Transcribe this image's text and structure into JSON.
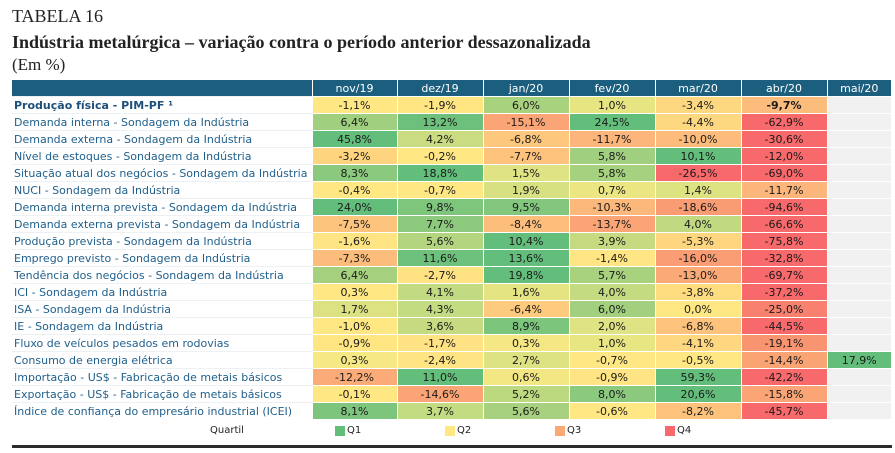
{
  "header": {
    "table_number": "TABELA 16",
    "title": "Indústria metalúrgica – variação contra o período anterior dessazonalizada",
    "unit": "(Em %)"
  },
  "columns": [
    "nov/19",
    "dez/19",
    "jan/20",
    "fev/20",
    "mar/20",
    "abr/20",
    "mai/20"
  ],
  "colors": {
    "header_bg": "#1b5e7e",
    "label_text": "#1f5f8b",
    "empty_cell": "#f1f1f1",
    "Q1": "#63be7b",
    "Q2": "#ffe884",
    "Q3": "#fba877",
    "Q4": "#f8696b"
  },
  "rows": [
    {
      "label": "Produção física - PIM-PF ¹",
      "bold": true,
      "values": [
        "-1,1%",
        "-1,9%",
        "6,0%",
        "1,0%",
        "-3,4%",
        "-9,7%",
        ""
      ],
      "fills": [
        "#ffe884",
        "#ffe683",
        "#a9d27f",
        "#e7e582",
        "#fed880",
        "#fcbc7b",
        ""
      ]
    },
    {
      "label": "Demanda interna - Sondagem da Indústria",
      "values": [
        "6,4%",
        "13,2%",
        "-15,1%",
        "24,5%",
        "-4,4%",
        "-62,9%",
        ""
      ],
      "fills": [
        "#9fcf7f",
        "#6cc07c",
        "#fba576",
        "#63be7b",
        "#fed880",
        "#f8696b",
        ""
      ]
    },
    {
      "label": "Demanda externa - Sondagem da Indústria",
      "values": [
        "45,8%",
        "4,2%",
        "-6,8%",
        "-11,7%",
        "-10,0%",
        "-30,6%",
        ""
      ],
      "fills": [
        "#63be7b",
        "#c9dc81",
        "#fdc77d",
        "#fcb57a",
        "#fdbc7b",
        "#f8696b",
        ""
      ]
    },
    {
      "label": "Nível de estoques - Sondagem da Indústria",
      "values": [
        "-3,2%",
        "-0,2%",
        "-7,7%",
        "5,8%",
        "10,1%",
        "-12,0%",
        ""
      ],
      "fills": [
        "#fed47f",
        "#ffe784",
        "#fdc27c",
        "#9fcf7f",
        "#63be7b",
        "#f8696b",
        ""
      ]
    },
    {
      "label": "Situação atual dos negócios - Sondagem da Indústria",
      "values": [
        "8,3%",
        "18,8%",
        "1,5%",
        "5,8%",
        "-26,5%",
        "-69,0%",
        ""
      ],
      "fills": [
        "#8bc97e",
        "#63be7b",
        "#e0e383",
        "#a6d17f",
        "#f8696b",
        "#f8696b",
        ""
      ]
    },
    {
      "label": "NUCI - Sondagem da Indústria",
      "values": [
        "-0,4%",
        "-0,7%",
        "1,9%",
        "0,7%",
        "1,4%",
        "-11,7%",
        ""
      ],
      "fills": [
        "#ffe884",
        "#ffe784",
        "#d8e182",
        "#ebe582",
        "#dee382",
        "#fcb57a",
        ""
      ]
    },
    {
      "label": "Demanda interna prevista - Sondagem da Indústria",
      "values": [
        "24,0%",
        "9,8%",
        "9,5%",
        "-10,3%",
        "-18,6%",
        "-94,6%",
        ""
      ],
      "fills": [
        "#63be7b",
        "#7fc67d",
        "#82c77d",
        "#fcb87a",
        "#f99c73",
        "#f8696b",
        ""
      ]
    },
    {
      "label": "Demanda externa prevista - Sondagem da Indústria",
      "values": [
        "-7,5%",
        "7,7%",
        "-8,4%",
        "-13,7%",
        "4,0%",
        "-66,6%",
        ""
      ],
      "fills": [
        "#fdc47d",
        "#8dca7e",
        "#fdbe7c",
        "#fba576",
        "#c1da81",
        "#f8696b",
        ""
      ]
    },
    {
      "label": "Produção prevista - Sondagem da Indústria",
      "values": [
        "-1,6%",
        "5,6%",
        "10,4%",
        "3,9%",
        "-5,3%",
        "-75,8%",
        ""
      ],
      "fills": [
        "#ffe483",
        "#b3d580",
        "#63be7b",
        "#c6db81",
        "#fed680",
        "#f8696b",
        ""
      ]
    },
    {
      "label": "Emprego  previsto - Sondagem da Indústria",
      "values": [
        "-7,3%",
        "11,6%",
        "13,6%",
        "-1,4%",
        "-16,0%",
        "-32,8%",
        ""
      ],
      "fills": [
        "#fcbc7b",
        "#6ec17c",
        "#63be7b",
        "#ffe583",
        "#fa9d74",
        "#f8696b",
        ""
      ]
    },
    {
      "label": "Tendência dos negócios - Sondagem da Indústria",
      "values": [
        "6,4%",
        "-2,7%",
        "19,8%",
        "5,7%",
        "-13,0%",
        "-69,7%",
        ""
      ],
      "fills": [
        "#a5d17f",
        "#ffe383",
        "#63be7b",
        "#a9d27f",
        "#fbaa77",
        "#f8696b",
        ""
      ]
    },
    {
      "label": "ICI - Sondagem da Indústria",
      "values": [
        "0,3%",
        "4,1%",
        "1,6%",
        "4,0%",
        "-3,8%",
        "-37,2%",
        ""
      ],
      "fills": [
        "#ffe884",
        "#c2da81",
        "#e4e482",
        "#c4db81",
        "#fedd81",
        "#f8696b",
        ""
      ]
    },
    {
      "label": "ISA - Sondagem da Indústria",
      "values": [
        "1,7%",
        "4,3%",
        "-6,4%",
        "6,0%",
        "0,0%",
        "-25,0%",
        ""
      ],
      "fills": [
        "#dce282",
        "#c3db81",
        "#fdca7e",
        "#a2d07f",
        "#ffe884",
        "#f8806f",
        ""
      ]
    },
    {
      "label": "IE - Sondagem da Indústria",
      "values": [
        "-1,0%",
        "3,6%",
        "8,9%",
        "2,0%",
        "-6,8%",
        "-44,5%",
        ""
      ],
      "fills": [
        "#ffe783",
        "#c6db81",
        "#7cc57d",
        "#dfe383",
        "#fdc27c",
        "#f8696b",
        ""
      ]
    },
    {
      "label": "Fluxo de veículos pesados em rodovias",
      "values": [
        "-0,9%",
        "-1,7%",
        "0,3%",
        "1,0%",
        "-4,1%",
        "-19,1%",
        ""
      ],
      "fills": [
        "#ffe683",
        "#ffe283",
        "#f5e783",
        "#e8e583",
        "#fed780",
        "#f99470",
        ""
      ]
    },
    {
      "label": "Consumo de energia elétrica",
      "values": [
        "0,3%",
        "-2,4%",
        "2,7%",
        "-0,7%",
        "-0,5%",
        "-14,4%",
        "17,9%"
      ],
      "fills": [
        "#f6e883",
        "#ffe483",
        "#dde283",
        "#ffe784",
        "#ffe784",
        "#faa474",
        "#63be7b"
      ]
    },
    {
      "label": "Importação - US$ - Fabricação de metais básicos",
      "values": [
        "-12,2%",
        "11,0%",
        "0,6%",
        "-0,9%",
        "59,3%",
        "-42,2%",
        ""
      ],
      "fills": [
        "#fbab77",
        "#63be7b",
        "#f3e783",
        "#ffe483",
        "#63be7b",
        "#f8696b",
        ""
      ]
    },
    {
      "label": "Exportação - US$ - Fabricação de metais básicos",
      "values": [
        "-0,1%",
        "-14,6%",
        "5,2%",
        "8,0%",
        "20,6%",
        "-15,8%",
        ""
      ],
      "fills": [
        "#ffe784",
        "#fba576",
        "#bcd980",
        "#8bc97e",
        "#63be7b",
        "#fba576",
        ""
      ]
    },
    {
      "label": "Índice de confiança do empresário industrial (ICEI)",
      "values": [
        "8,1%",
        "3,7%",
        "5,6%",
        "-0,6%",
        "-8,2%",
        "-45,7%",
        ""
      ],
      "fills": [
        "#7dc57d",
        "#c3db81",
        "#a8d17f",
        "#ffe784",
        "#fdc37c",
        "#f8696b",
        ""
      ]
    }
  ],
  "bold_cells": [
    [
      0,
      5
    ]
  ],
  "legend": {
    "title": "Quartil",
    "items": [
      {
        "label": "Q1",
        "color": "#63be7b"
      },
      {
        "label": "Q2",
        "color": "#ffe884"
      },
      {
        "label": "Q3",
        "color": "#fba877"
      },
      {
        "label": "Q4",
        "color": "#f8696b"
      }
    ]
  }
}
